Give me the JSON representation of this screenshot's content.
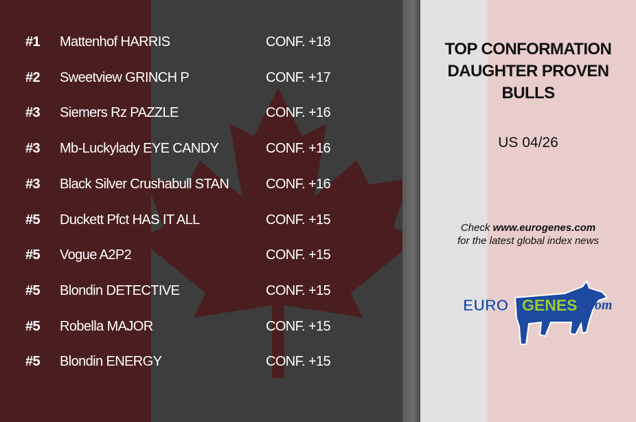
{
  "rankings": [
    {
      "rank": "#1",
      "name": "Mattenhof HARRIS",
      "conf": "CONF. +18"
    },
    {
      "rank": "#2",
      "name": "Sweetview GRINCH P",
      "conf": "CONF. +17"
    },
    {
      "rank": "#3",
      "name": "Siemers Rz PAZZLE",
      "conf": "CONF. +16"
    },
    {
      "rank": "#3",
      "name": "Mb-Luckylady EYE CANDY",
      "conf": "CONF. +16"
    },
    {
      "rank": "#3",
      "name": "Black Silver Crushabull STAN",
      "conf": "CONF. +16"
    },
    {
      "rank": "#5",
      "name": "Duckett Pfct HAS IT ALL",
      "conf": "CONF. +15"
    },
    {
      "rank": "#5",
      "name": "Vogue A2P2",
      "conf": "CONF. +15"
    },
    {
      "rank": "#5",
      "name": "Blondin DETECTIVE",
      "conf": "CONF. +15"
    },
    {
      "rank": "#5",
      "name": "Robella MAJOR",
      "conf": "CONF. +15"
    },
    {
      "rank": "#5",
      "name": "Blondin ENERGY",
      "conf": "CONF. +15"
    }
  ],
  "panel": {
    "title_lines": [
      "TOP CONFORMATION",
      "DAUGHTER PROVEN",
      "BULLS"
    ],
    "date": "US 04/26",
    "check_prefix": "Check ",
    "check_url": "www.eurogenes.com",
    "check_suffix": "for the latest global index news"
  },
  "logo": {
    "part1": "EURO",
    "part2": "GENES",
    "part3": ".com",
    "colors": {
      "blue": "#1d4aa0",
      "green": "#9ccb2f"
    }
  },
  "colors": {
    "flag_red_dark": "#4a1e1f",
    "flag_gray": "#3d3d3d",
    "panel_pink": "#e9cdcd"
  }
}
